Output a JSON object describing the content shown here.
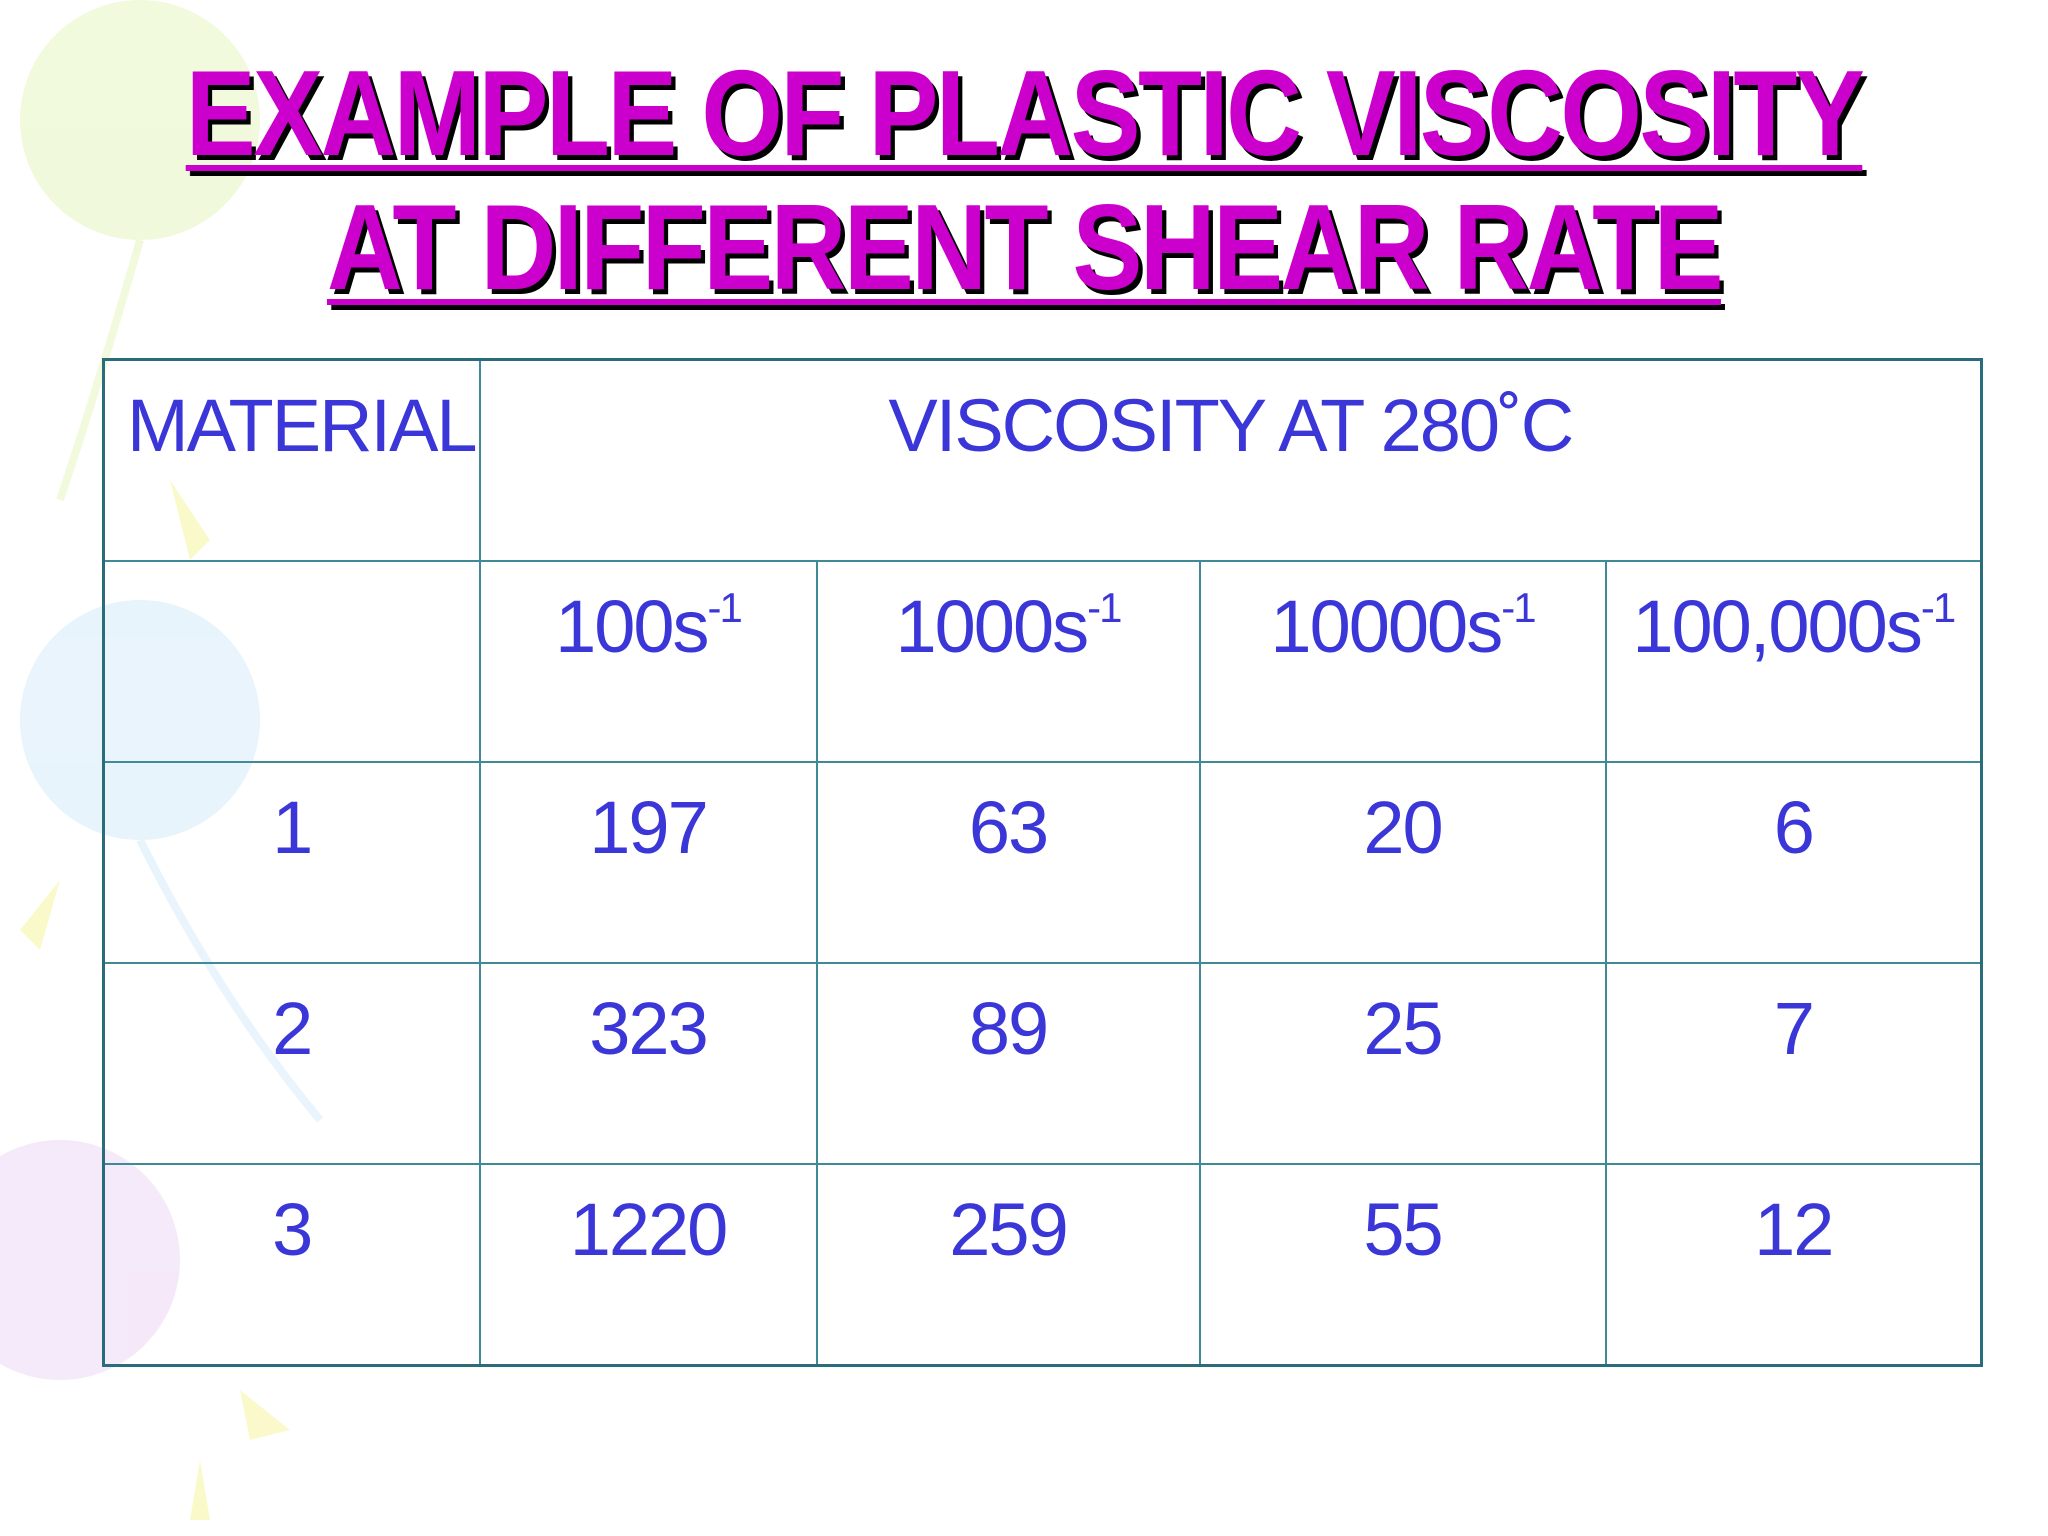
{
  "header": {
    "title": [
      "EXAMPLE OF PLASTIC VISCOSITY",
      "AT DIFFERENT SHEAR RATE"
    ]
  },
  "table": {
    "header": [
      "MATERIAL",
      "VISCOSITY AT 280˚C"
    ],
    "shear_rates": [
      {
        "base": "100s",
        "sup": "-1"
      },
      {
        "base": "1000s",
        "sup": "-1"
      },
      {
        "base": "10000s",
        "sup": "-1"
      },
      {
        "base": "100,000s",
        "sup": "-1"
      }
    ],
    "rows": [
      [
        1,
        197,
        63,
        20,
        6
      ],
      [
        2,
        323,
        89,
        25,
        7
      ],
      [
        3,
        1220,
        259,
        55,
        12
      ]
    ]
  }
}
